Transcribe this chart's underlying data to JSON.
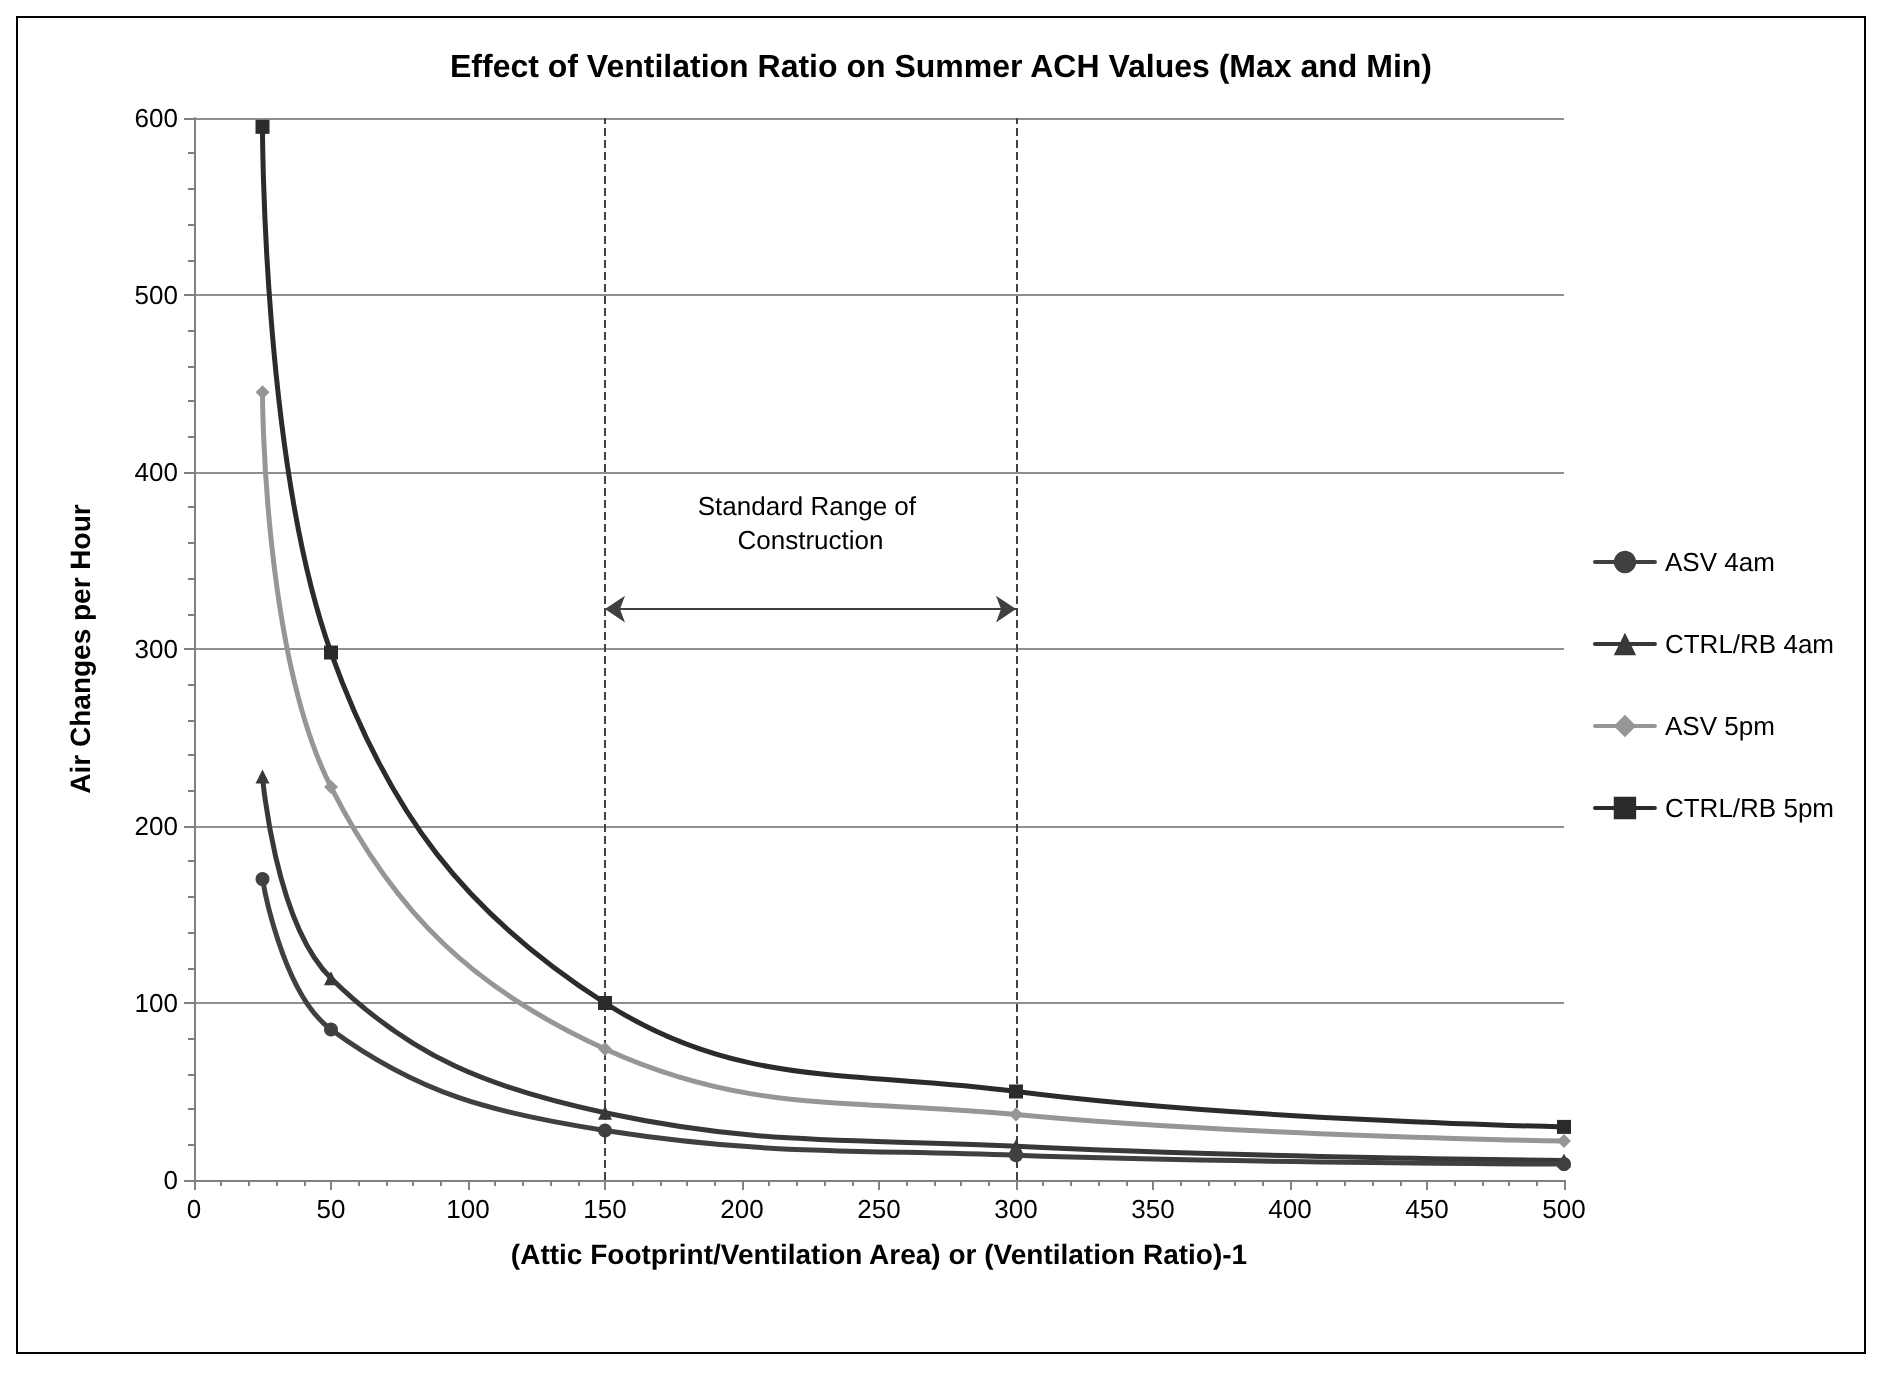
{
  "chart_data": {
    "type": "line",
    "title": "Effect of Ventilation Ratio on Summer ACH Values (Max and Min)",
    "xlabel": "(Attic Footprint/Ventilation Area) or (Ventilation Ratio)-1",
    "ylabel": "Air Changes per Hour",
    "x": [
      25,
      50,
      150,
      300,
      500
    ],
    "series": [
      {
        "name": "ASV 4am",
        "color": "#404040",
        "marker": "circle",
        "values": [
          170,
          85,
          28,
          14,
          9
        ]
      },
      {
        "name": "CTRL/RB 4am",
        "color": "#383838",
        "marker": "triangle",
        "values": [
          228,
          114,
          38,
          19,
          11
        ]
      },
      {
        "name": "ASV 5pm",
        "color": "#969696",
        "marker": "diamond",
        "values": [
          445,
          222,
          74,
          37,
          22
        ]
      },
      {
        "name": "CTRL/RB 5pm",
        "color": "#2b2b2b",
        "marker": "square",
        "values": [
          595,
          298,
          100,
          50,
          30
        ]
      }
    ],
    "xlim": [
      0,
      500
    ],
    "xticks": [
      0,
      50,
      100,
      150,
      200,
      250,
      300,
      350,
      400,
      450,
      500
    ],
    "ylim": [
      0,
      600
    ],
    "yticks": [
      0,
      100,
      200,
      300,
      400,
      500,
      600
    ],
    "grid": "y",
    "legend": "right",
    "ref_lines": [
      {
        "axis": "x",
        "value": 150,
        "line_style": "dashed",
        "color": "#404040"
      },
      {
        "axis": "x",
        "value": 300,
        "line_style": "dashed",
        "color": "#404040"
      }
    ],
    "annotations": [
      "Standard Range of Construction"
    ]
  }
}
